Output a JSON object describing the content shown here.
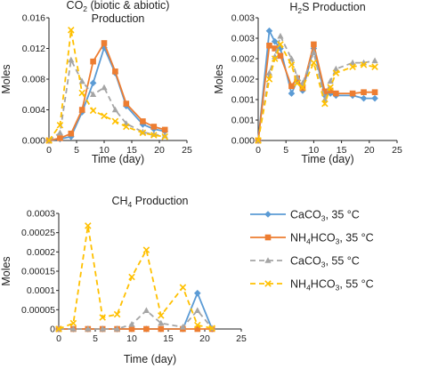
{
  "styles": {
    "CaCO3, 35 °C": {
      "color": "#5b9bd5",
      "dash": "",
      "marker": "diamond"
    },
    "NH4HCO3, 35 °C": {
      "color": "#ed7d31",
      "dash": "",
      "marker": "square"
    },
    "CaCO3, 55 °C": {
      "color": "#a5a5a5",
      "dash": "6,4",
      "marker": "triangle"
    },
    "NH4HCO3, 55 °C": {
      "color": "#ffc000",
      "dash": "6,4",
      "marker": "x"
    }
  },
  "legend": {
    "items": [
      {
        "series": "CaCO3, 35 °C",
        "label_main": "CaCO",
        "label_sub": "3",
        "label_rest": ", 35 °C"
      },
      {
        "series": "NH4HCO3, 35 °C",
        "label_main": "NH",
        "label_sub": "4",
        "label_mid": "HCO",
        "label_sub2": "3",
        "label_rest": ", 35 °C"
      },
      {
        "series": "CaCO3, 55 °C",
        "label_main": "CaCO",
        "label_sub": "3",
        "label_rest": ", 55 °C"
      },
      {
        "series": "NH4HCO3, 55 °C",
        "label_main": "NH",
        "label_sub": "4",
        "label_mid": "HCO",
        "label_sub2": "3",
        "label_rest": ", 55 °C"
      }
    ]
  },
  "chart_data": [
    {
      "type": "line",
      "title_parts": {
        "pre": "CO",
        "sub": "2",
        "post": " (biotic & abiotic)",
        "line2": "Production"
      },
      "xlabel": "Time (day)",
      "ylabel": "Moles",
      "xlim": [
        0,
        25
      ],
      "ylim": [
        0,
        0.016
      ],
      "xticks": [
        "0",
        "5",
        "10",
        "15",
        "20",
        "25"
      ],
      "yticks": [
        "0.000",
        "0.004",
        "0.008",
        "0.012",
        "0.016"
      ],
      "series": [
        {
          "name": "CaCO3, 35 °C",
          "x": [
            0,
            2,
            4,
            6,
            8,
            10,
            12,
            14,
            17,
            19,
            21
          ],
          "y": [
            0,
            0.0002,
            0.0005,
            0.0037,
            0.0075,
            0.0121,
            0.0088,
            0.0045,
            0.0021,
            0.0015,
            0.0012
          ]
        },
        {
          "name": "NH4HCO3, 35 °C",
          "x": [
            0,
            2,
            4,
            6,
            8,
            10,
            12,
            14,
            17,
            19,
            21
          ],
          "y": [
            0,
            0.0003,
            0.0009,
            0.004,
            0.0103,
            0.0127,
            0.009,
            0.0048,
            0.0025,
            0.0018,
            0.0014
          ]
        },
        {
          "name": "CaCO3, 55 °C",
          "x": [
            0,
            2,
            4,
            6,
            8,
            10,
            12,
            14,
            17,
            19,
            21
          ],
          "y": [
            0,
            0.001,
            0.0105,
            0.0077,
            0.006,
            0.0069,
            0.004,
            0.0022,
            0.0011,
            0.0008,
            0.0006
          ]
        },
        {
          "name": "NH4HCO3, 55 °C",
          "x": [
            0,
            2,
            4,
            6,
            8,
            10,
            12,
            14,
            17,
            19,
            21
          ],
          "y": [
            0,
            0.002,
            0.0144,
            0.0062,
            0.0039,
            0.0032,
            0.0025,
            0.0018,
            0.001,
            0.0007,
            0.0005
          ]
        }
      ]
    },
    {
      "type": "line",
      "title_parts": {
        "pre": "H",
        "sub": "2",
        "post": "S Production",
        "line2": ""
      },
      "xlabel": "Time (day)",
      "ylabel": "Moles",
      "xlim": [
        0,
        25
      ],
      "ylim": [
        0,
        0.003
      ],
      "xticks": [
        "0",
        "5",
        "10",
        "15",
        "20",
        "25"
      ],
      "yticks": [
        "0.000",
        "0.001",
        "0.001",
        "0.002",
        "0.002",
        "0.003",
        "0.003"
      ],
      "series": [
        {
          "name": "CaCO3, 35 °C",
          "x": [
            0,
            2,
            3,
            4,
            6,
            7,
            8,
            10,
            12,
            13,
            14,
            17,
            19,
            21
          ],
          "y": [
            0,
            0.00268,
            0.00242,
            0.00225,
            0.00115,
            0.00145,
            0.00122,
            0.00225,
            0.0011,
            0.00115,
            0.0011,
            0.0011,
            0.00103,
            0.00103
          ]
        },
        {
          "name": "NH4HCO3, 35 °C",
          "x": [
            0,
            2,
            3,
            4,
            6,
            7,
            8,
            10,
            12,
            13,
            14,
            17,
            19,
            21
          ],
          "y": [
            0,
            0.00232,
            0.00225,
            0.00207,
            0.00133,
            0.00152,
            0.00128,
            0.00235,
            0.0012,
            0.00122,
            0.00115,
            0.00115,
            0.00118,
            0.00118
          ]
        },
        {
          "name": "CaCO3, 55 °C",
          "x": [
            0,
            2,
            3,
            4,
            6,
            7,
            8,
            10,
            12,
            13,
            14,
            17,
            19,
            21
          ],
          "y": [
            0,
            0.00165,
            0.00205,
            0.00255,
            0.002,
            0.00155,
            0.0014,
            0.00215,
            0.001,
            0.00145,
            0.00175,
            0.0019,
            0.0019,
            0.00195
          ]
        },
        {
          "name": "NH4HCO3, 55 °C",
          "x": [
            0,
            2,
            3,
            4,
            6,
            7,
            8,
            10,
            12,
            13,
            14,
            17,
            19,
            21
          ],
          "y": [
            0,
            0.0015,
            0.002,
            0.00235,
            0.00185,
            0.0014,
            0.0013,
            0.0019,
            0.0009,
            0.0013,
            0.00165,
            0.0018,
            0.00185,
            0.0018
          ]
        }
      ]
    },
    {
      "type": "line",
      "title_parts": {
        "pre": "CH",
        "sub": "4",
        "post": " Production",
        "line2": ""
      },
      "xlabel": "Time (day)",
      "ylabel": "Moles",
      "xlim": [
        0,
        25
      ],
      "ylim": [
        0,
        0.0003
      ],
      "xticks": [
        "0",
        "5",
        "10",
        "15",
        "20",
        "25"
      ],
      "yticks": [
        "0",
        "0.00005",
        "0.0001",
        "0.00015",
        "0.0002",
        "0.00025",
        "0.0003"
      ],
      "series": [
        {
          "name": "CaCO3, 35 °C",
          "x": [
            0,
            2,
            4,
            6,
            8,
            10,
            12,
            14,
            17,
            19,
            21
          ],
          "y": [
            0,
            0,
            0,
            0,
            0,
            0,
            0,
            0,
            0,
            9.3e-05,
            0
          ]
        },
        {
          "name": "NH4HCO3, 35 °C",
          "x": [
            0,
            2,
            4,
            6,
            8,
            10,
            12,
            14,
            17,
            19,
            21
          ],
          "y": [
            0,
            0,
            0,
            0,
            0,
            0,
            0,
            0,
            0,
            0,
            0
          ]
        },
        {
          "name": "CaCO3, 55 °C",
          "x": [
            0,
            2,
            4,
            6,
            8,
            10,
            12,
            14,
            17,
            19,
            21
          ],
          "y": [
            0,
            0,
            0,
            0,
            0,
            1.2e-05,
            4.8e-05,
            1.5e-05,
            5e-06,
            4.8e-05,
            2e-06
          ]
        },
        {
          "name": "NH4HCO3, 55 °C",
          "x": [
            0,
            2,
            4,
            6,
            8,
            10,
            12,
            14,
            17,
            19,
            21
          ],
          "y": [
            0,
            1.5e-05,
            0.000268,
            3e-05,
            3.8e-05,
            0.000135,
            0.000205,
            3.5e-05,
            0.000108,
            1e-05,
            2e-06
          ]
        }
      ]
    }
  ]
}
